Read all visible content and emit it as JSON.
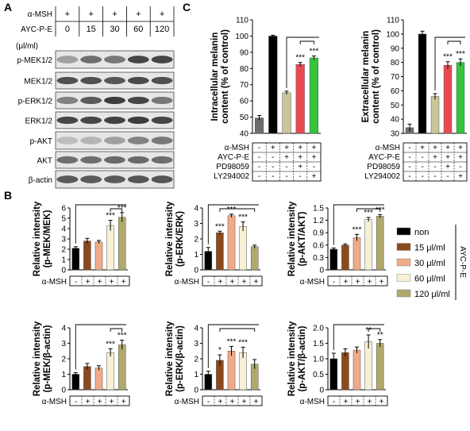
{
  "panel_labels": [
    "A",
    "B",
    "C"
  ],
  "blot": {
    "header_rows": [
      {
        "label": "α-MSH",
        "cells": [
          "+",
          "+",
          "+",
          "+",
          "+"
        ]
      },
      {
        "label": "AYC-P-E",
        "cells": [
          "0",
          "15",
          "30",
          "60",
          "120"
        ]
      }
    ],
    "unit": "(μl/ml)",
    "rows": [
      "p-MEK1/2",
      "MEK1/2",
      "p-ERK1/2",
      "ERK1/2",
      "p-AKT",
      "AKT",
      "β-actin"
    ]
  },
  "legend": {
    "items": [
      {
        "label": "non",
        "color": "#000000"
      },
      {
        "label": "15 μl/ml",
        "color": "#8B4A1E"
      },
      {
        "label": "30 μl/ml",
        "color": "#F0AA86"
      },
      {
        "label": "60 μl/ml",
        "color": "#F6F1D6"
      },
      {
        "label": "120 μl/ml",
        "color": "#B0A86C"
      }
    ],
    "group_label": "AYC-P-E"
  },
  "b_colors": [
    "#000000",
    "#8B4A1E",
    "#F0AA86",
    "#F6F1D6",
    "#B0A86C"
  ],
  "c_colors": [
    "#000000",
    "#CBC59A",
    "#E94A52",
    "#35C43B"
  ],
  "c_treat_labels": [
    "α-MSH",
    "AYC-P-E",
    "PD98059",
    "LY294002"
  ],
  "c_treat_signs": [
    [
      "-",
      "+",
      "+",
      "+",
      "+"
    ],
    [
      "-",
      "-",
      "+",
      "+",
      "+"
    ],
    [
      "-",
      "-",
      "-",
      "+",
      "-"
    ],
    [
      "-",
      "-",
      "-",
      "-",
      "+"
    ]
  ],
  "b_msh_label": "α-MSH",
  "b_msh_signs": [
    "-",
    "+",
    "+",
    "+",
    "+"
  ],
  "chart_data": [
    {
      "panel": "B",
      "type": "bar",
      "ylabel": "Relative intensity (p-MEK/MEK)",
      "ylim": [
        0,
        6
      ],
      "yticks": [
        "0",
        "1",
        "2",
        "3",
        "4",
        "5",
        "6"
      ],
      "categories": [
        "non",
        "15 μl/ml",
        "30 μl/ml",
        "60 μl/ml",
        "120 μl/ml"
      ],
      "values": [
        2.1,
        2.8,
        2.7,
        4.3,
        5.1
      ],
      "errors": [
        0.15,
        0.25,
        0.15,
        0.5,
        0.45
      ],
      "stars": [
        "",
        "",
        "",
        "***",
        "***"
      ]
    },
    {
      "panel": "B",
      "type": "bar",
      "ylabel": "Relative intensity (p-ERK/ERK)",
      "ylim": [
        0,
        4
      ],
      "yticks": [
        "0",
        "1",
        "2",
        "3",
        "4"
      ],
      "categories": [
        "non",
        "15 μl/ml",
        "30 μl/ml",
        "60 μl/ml",
        "120 μl/ml"
      ],
      "values": [
        1.2,
        2.4,
        3.5,
        2.8,
        1.5
      ],
      "errors": [
        0.25,
        0.1,
        0.1,
        0.3,
        0.1
      ],
      "stars": [
        "",
        "***",
        "***",
        "***",
        ""
      ]
    },
    {
      "panel": "B",
      "type": "bar",
      "ylabel": "Relative intensity (p-AKT/AKT)",
      "ylim": [
        0,
        1.5
      ],
      "yticks": [
        "0",
        "0.3",
        "0.6",
        "0.9",
        "1.2",
        "1.5"
      ],
      "categories": [
        "non",
        "15 μl/ml",
        "30 μl/ml",
        "60 μl/ml",
        "120 μl/ml"
      ],
      "values": [
        0.5,
        0.6,
        0.78,
        1.22,
        1.3
      ],
      "errors": [
        0.03,
        0.03,
        0.08,
        0.05,
        0.04
      ],
      "stars": [
        "",
        "",
        "***",
        "***",
        "***"
      ]
    },
    {
      "panel": "B",
      "type": "bar",
      "ylabel": "Relative intensity (p-MEK/β-actin)",
      "ylim": [
        0,
        4
      ],
      "yticks": [
        "0",
        "1",
        "2",
        "3",
        "4"
      ],
      "categories": [
        "non",
        "15 μl/ml",
        "30 μl/ml",
        "60 μl/ml",
        "120 μl/ml"
      ],
      "values": [
        1.0,
        1.5,
        1.4,
        2.4,
        2.9
      ],
      "errors": [
        0.1,
        0.2,
        0.15,
        0.25,
        0.3
      ],
      "stars": [
        "",
        "",
        "",
        "***",
        "***"
      ]
    },
    {
      "panel": "B",
      "type": "bar",
      "ylabel": "Relative intensity (p-ERK/β-actin)",
      "ylim": [
        0,
        4
      ],
      "yticks": [
        "0",
        "1",
        "2",
        "3",
        "4"
      ],
      "categories": [
        "non",
        "15 μl/ml",
        "30 μl/ml",
        "60 μl/ml",
        "120 μl/ml"
      ],
      "values": [
        1.0,
        1.9,
        2.5,
        2.4,
        1.65
      ],
      "errors": [
        0.2,
        0.35,
        0.3,
        0.35,
        0.3
      ],
      "stars": [
        "",
        "*",
        "***",
        "***",
        ""
      ]
    },
    {
      "panel": "B",
      "type": "bar",
      "ylabel": "Relative intensity (p-AKT/β-actin)",
      "ylim": [
        0,
        2.0
      ],
      "yticks": [
        "0",
        "0.5",
        "1.0",
        "1.5",
        "2.0"
      ],
      "categories": [
        "non",
        "15 μl/ml",
        "30 μl/ml",
        "60 μl/ml",
        "120 μl/ml"
      ],
      "values": [
        1.0,
        1.2,
        1.28,
        1.55,
        1.5
      ],
      "errors": [
        0.18,
        0.12,
        0.1,
        0.22,
        0.12
      ],
      "stars": [
        "",
        "",
        "",
        "**",
        "**"
      ]
    },
    {
      "panel": "C",
      "type": "bar",
      "ylabel": "Intracellular melanin content (% of control)",
      "ylim": [
        40,
        110
      ],
      "yticks": [
        "40",
        "50",
        "60",
        "70",
        "80",
        "90",
        "100",
        "110"
      ],
      "values": [
        49.5,
        100,
        65,
        82.5,
        86.5
      ],
      "errors": [
        1.5,
        0.5,
        1,
        1.2,
        1.2
      ],
      "stars": [
        "",
        "",
        "",
        "***",
        "***"
      ]
    },
    {
      "panel": "C",
      "type": "bar",
      "ylabel": "Extracellular melanin content (% of control)",
      "ylim": [
        30,
        110
      ],
      "yticks": [
        "30",
        "40",
        "50",
        "60",
        "70",
        "80",
        "90",
        "100",
        "110"
      ],
      "values": [
        34,
        100,
        56,
        78,
        80
      ],
      "errors": [
        2.5,
        2,
        2,
        2.5,
        2.5
      ],
      "stars": [
        "",
        "",
        "",
        "***",
        "***"
      ]
    }
  ]
}
